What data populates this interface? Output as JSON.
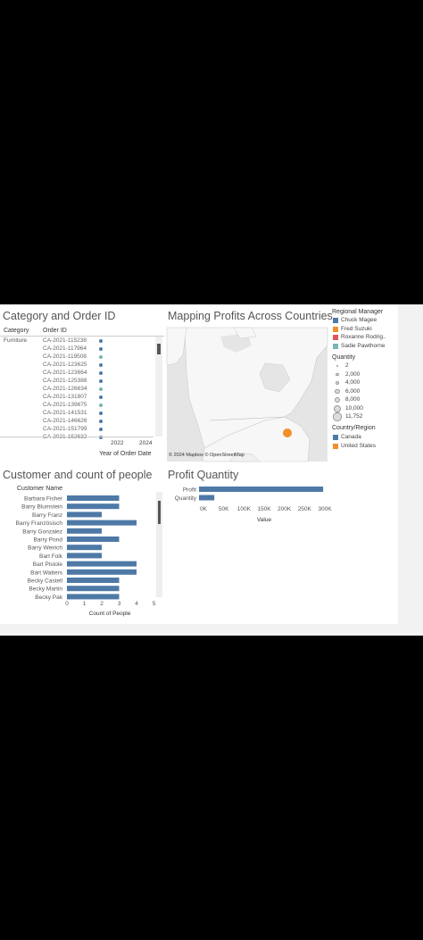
{
  "order_panel": {
    "title": "Category and Order ID",
    "col_category": "Category",
    "col_order": "Order ID",
    "category_value": "Furniture",
    "order_ids": [
      "CA-2021-115238",
      "CA-2021-117964",
      "CA-2021-119508",
      "CA-2021-123625",
      "CA-2021-123664",
      "CA-2021-125388",
      "CA-2021-126634",
      "CA-2021-131807",
      "CA-2021-139675",
      "CA-2021-141531",
      "CA-2021-146626",
      "CA-2021-151799",
      "CA-2021-152632"
    ],
    "dot_colors": [
      "#4e79a7",
      "#4e79a7",
      "#76b7b2",
      "#4e79a7",
      "#4e79a7",
      "#4e79a7",
      "#76b7b2",
      "#4e79a7",
      "#76b7b2",
      "#4e79a7",
      "#4e79a7",
      "#4e79a7",
      "#4e79a7"
    ],
    "year_ticks": [
      "2022",
      "2024"
    ],
    "axis_label": "Year of Order Date"
  },
  "map_panel": {
    "title": "Mapping Profits Across Countries",
    "attribution": "© 2024 Mapbox © OpenStreetMap",
    "marker_color": "#f28e2b"
  },
  "legend_manager": {
    "title": "Regional Manager",
    "items": [
      {
        "label": "Chuck Magee",
        "color": "#4e79a7"
      },
      {
        "label": "Fred Suzuki",
        "color": "#f28e2b"
      },
      {
        "label": "Roxanne Rodrig..",
        "color": "#e15759"
      },
      {
        "label": "Sadie Pawthorne",
        "color": "#76b7b2"
      }
    ]
  },
  "legend_quantity": {
    "title": "Quantity",
    "items": [
      "2",
      "2,000",
      "4,000",
      "6,000",
      "8,000",
      "10,000",
      "11,752"
    ]
  },
  "legend_country": {
    "title": "Country/Region",
    "items": [
      {
        "label": "Canada",
        "color": "#4e79a7"
      },
      {
        "label": "United States",
        "color": "#f28e2b"
      }
    ]
  },
  "customer_panel": {
    "title": "Customer and count of people",
    "col_header": "Customer Name",
    "x_label": "Count of People",
    "x_ticks": [
      "0",
      "1",
      "2",
      "3",
      "4",
      "5"
    ],
    "chart_data": {
      "type": "bar",
      "categories": [
        "Barbara Fisher",
        "Barry Blumstein",
        "Barry Franz",
        "Barry Französisch",
        "Barry Gonzalez",
        "Barry Pond",
        "Barry Weirich",
        "Bart Folk",
        "Bart Pistole",
        "Bart Watters",
        "Becky Castell",
        "Becky Martin",
        "Becky Pak"
      ],
      "values": [
        3,
        3,
        2,
        4,
        2,
        3,
        2,
        2,
        4,
        4,
        3,
        3,
        3
      ],
      "xlabel": "Count of People",
      "xlim": [
        0,
        5
      ]
    }
  },
  "profit_panel": {
    "title": "Profit Quantity",
    "x_label": "Value",
    "x_ticks": [
      "0K",
      "50K",
      "100K",
      "150K",
      "200K",
      "250K",
      "300K"
    ],
    "chart_data": {
      "type": "bar",
      "categories": [
        "Profit",
        "Quantity"
      ],
      "values": [
        307000,
        37873
      ],
      "xlabel": "Value",
      "xlim": [
        0,
        320000
      ]
    }
  }
}
